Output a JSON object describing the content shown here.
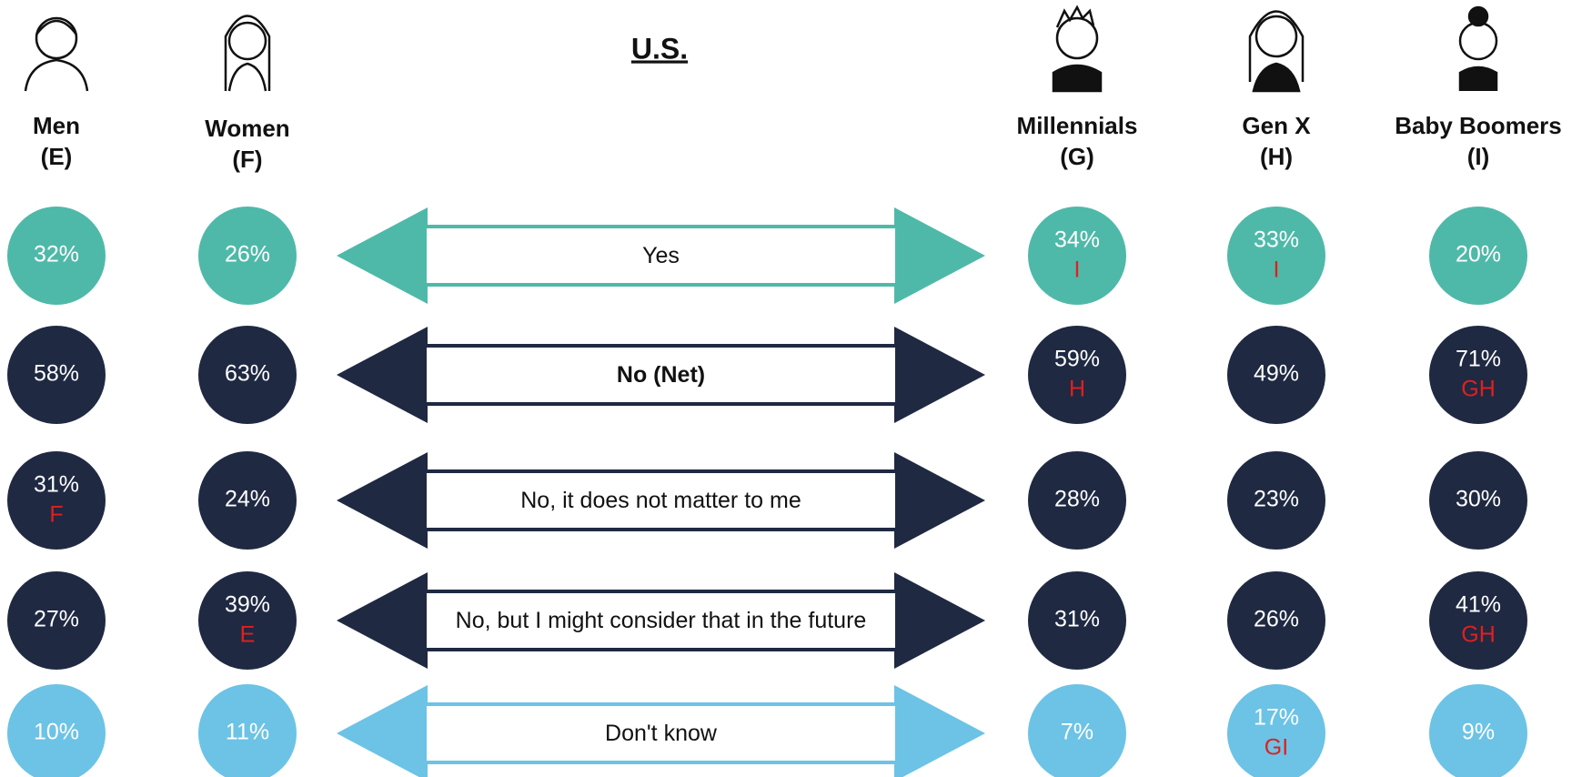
{
  "title": "U.S.",
  "groups": [
    {
      "name": "Men",
      "code": "(E)"
    },
    {
      "name": "Women",
      "code": "(F)"
    },
    {
      "name": "Millennials",
      "code": "(G)"
    },
    {
      "name": "Gen X",
      "code": "(H)"
    },
    {
      "name": "Baby Boomers",
      "code": "(I)"
    }
  ],
  "rows": [
    {
      "label": "Yes",
      "color": "#4fb9a9",
      "bold": false,
      "cells": [
        {
          "value": "32%"
        },
        {
          "value": "26%"
        },
        {
          "value": "34%",
          "sig": "I"
        },
        {
          "value": "33%",
          "sig": "I"
        },
        {
          "value": "20%"
        }
      ]
    },
    {
      "label": "No (Net)",
      "color": "#1f2942",
      "bold": true,
      "cells": [
        {
          "value": "58%"
        },
        {
          "value": "63%"
        },
        {
          "value": "59%",
          "sig": "H"
        },
        {
          "value": "49%"
        },
        {
          "value": "71%",
          "sig": "GH"
        }
      ]
    },
    {
      "label": "No, it does not matter to me",
      "color": "#1f2942",
      "bold": false,
      "cells": [
        {
          "value": "31%",
          "sig": "F"
        },
        {
          "value": "24%"
        },
        {
          "value": "28%"
        },
        {
          "value": "23%"
        },
        {
          "value": "30%"
        }
      ]
    },
    {
      "label": "No, but I might consider that in the future",
      "color": "#1f2942",
      "bold": false,
      "cells": [
        {
          "value": "27%"
        },
        {
          "value": "39%",
          "sig": "E"
        },
        {
          "value": "31%"
        },
        {
          "value": "26%"
        },
        {
          "value": "41%",
          "sig": "GH"
        }
      ]
    },
    {
      "label": "Don't know",
      "color": "#6cc3e6",
      "bold": false,
      "cells": [
        {
          "value": "10%"
        },
        {
          "value": "11%"
        },
        {
          "value": "7%"
        },
        {
          "value": "17%",
          "sig": "GI"
        },
        {
          "value": "9%"
        }
      ]
    }
  ]
}
